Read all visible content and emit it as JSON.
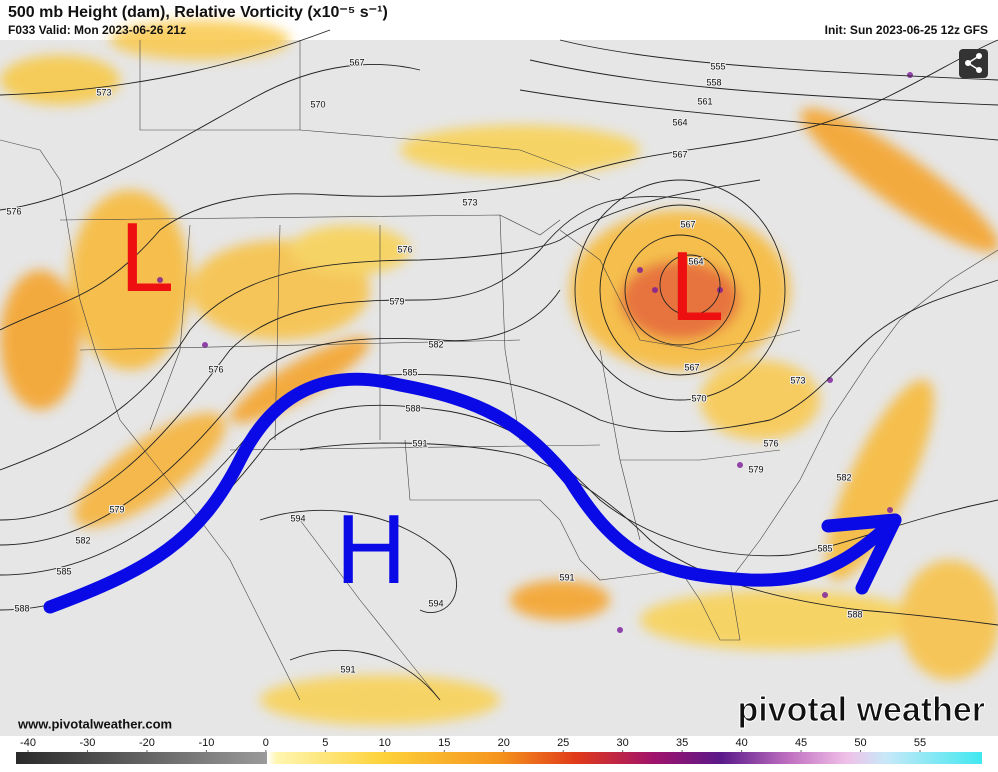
{
  "header": {
    "title": "500 mb Height (dam), Relative Vorticity (x10⁻⁵ s⁻¹)",
    "valid": "F033 Valid: Mon 2023-06-26 21z",
    "init": "Init: Sun 2023-06-25 12z GFS"
  },
  "map": {
    "lows": [
      "L",
      "L"
    ],
    "high": "H",
    "contour_labels": [
      573,
      567,
      570,
      555,
      558,
      561,
      564,
      567,
      573,
      576,
      576,
      579,
      582,
      585,
      588,
      591,
      576,
      579,
      582,
      585,
      588,
      594,
      594,
      591,
      591,
      567,
      564,
      567,
      570,
      573,
      576,
      579,
      582,
      585,
      588
    ]
  },
  "footer": {
    "website": "www.pivotalweather.com",
    "brand": "pivotal weather"
  },
  "colorbar": {
    "ticks": [
      -40,
      -30,
      -20,
      -10,
      0,
      5,
      10,
      15,
      20,
      25,
      30,
      35,
      40,
      45,
      50,
      55
    ]
  }
}
